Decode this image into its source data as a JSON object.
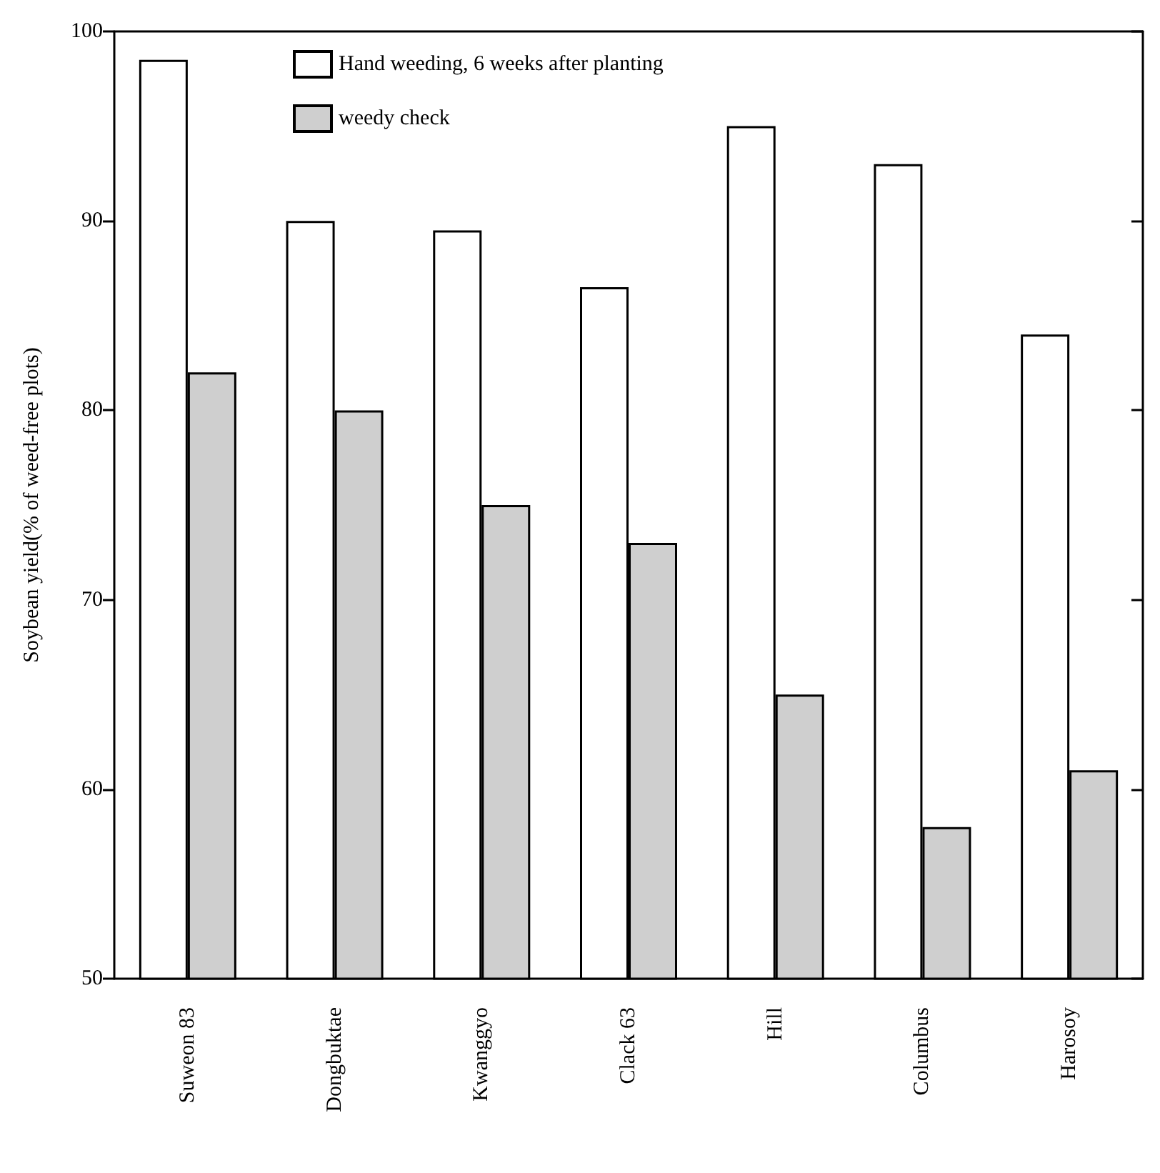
{
  "chart_data": {
    "type": "bar",
    "ylabel": "Soybean yield(% of weed-free plots)",
    "categories": [
      "Suweon 83",
      "Dongbuktae",
      "Kwanggyo",
      "Clack 63",
      "Hill",
      "Columbus",
      "Harosoy"
    ],
    "series": [
      {
        "name": "Hand weeding, 6 weeks after planting",
        "color": "#ffffff",
        "values": [
          98.5,
          90,
          89.5,
          86.5,
          95,
          93,
          84
        ]
      },
      {
        "name": "weedy check",
        "color": "#cfcfcf",
        "values": [
          82,
          80,
          75,
          73,
          65,
          58,
          61
        ]
      }
    ],
    "ylim": [
      50,
      100
    ],
    "yticks": [
      50,
      60,
      70,
      80,
      90,
      100
    ],
    "grid": false,
    "legend": "top"
  }
}
